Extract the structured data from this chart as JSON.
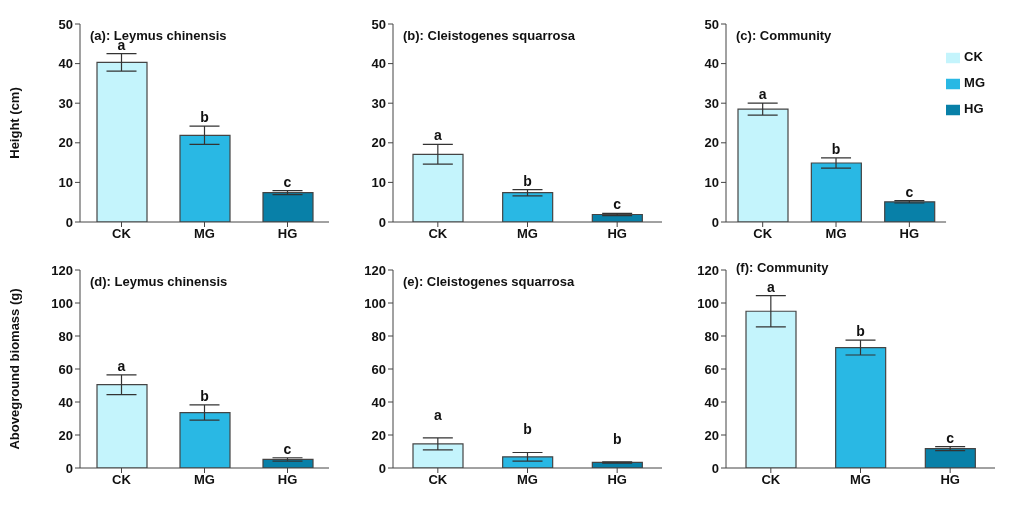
{
  "chart_data": [
    {
      "type": "bar",
      "title": "(a): Leymus chinensis",
      "ylabel": "Height (cm)",
      "categories": [
        "CK",
        "MG",
        "HG"
      ],
      "values": [
        40.3,
        21.9,
        7.4
      ],
      "errors": [
        2.2,
        2.3,
        0.5
      ],
      "colors": [
        "#c4f4fc",
        "#29b8e4",
        "#0880a8"
      ],
      "ylim": [
        0,
        50
      ],
      "yticks": [
        0,
        10,
        20,
        30,
        40,
        50
      ],
      "grid": false,
      "legend": false,
      "annotations": [
        {
          "text": "a",
          "x": "CK",
          "y": 42.5
        },
        {
          "text": "b",
          "x": "MG",
          "y": 24.2
        },
        {
          "text": "c",
          "x": "HG",
          "y": 7.9
        }
      ]
    },
    {
      "type": "bar",
      "title": "(b): Cleistogenes squarrosa",
      "categories": [
        "CK",
        "MG",
        "HG"
      ],
      "values": [
        17.1,
        7.4,
        1.9
      ],
      "errors": [
        2.5,
        0.8,
        0.3
      ],
      "colors": [
        "#c4f4fc",
        "#29b8e4",
        "#0880a8"
      ],
      "ylim": [
        0,
        50
      ],
      "yticks": [
        0,
        10,
        20,
        30,
        40,
        50
      ],
      "grid": false,
      "legend": false,
      "annotations": [
        {
          "text": "a",
          "x": "CK",
          "y": 19.6
        },
        {
          "text": "b",
          "x": "MG",
          "y": 8.2
        },
        {
          "text": "c",
          "x": "HG",
          "y": 2.2
        }
      ]
    },
    {
      "type": "bar",
      "title": "(c): Community",
      "categories": [
        "CK",
        "MG",
        "HG"
      ],
      "stacked": true,
      "series": [
        {
          "name": "CK",
          "color": "#c4f4fc",
          "values": [
            28.5,
            null,
            null
          ],
          "errors": [
            1.5,
            null,
            null
          ]
        },
        {
          "name": "MG",
          "color": "#29b8e4",
          "values": [
            null,
            14.9,
            null
          ],
          "errors": [
            null,
            1.3,
            null
          ]
        },
        {
          "name": "HG",
          "color": "#0880a8",
          "values": [
            null,
            null,
            5.1
          ],
          "errors": [
            null,
            null,
            0.3
          ]
        }
      ],
      "ylim": [
        0,
        50
      ],
      "yticks": [
        0,
        10,
        20,
        30,
        40,
        50
      ],
      "grid": false,
      "legend": "top right",
      "annotations": [
        {
          "text": "a",
          "x": "CK",
          "y": 30
        },
        {
          "text": "b",
          "x": "MG",
          "y": 16.2
        },
        {
          "text": "c",
          "x": "HG",
          "y": 5.4
        }
      ]
    },
    {
      "type": "bar",
      "title": "(d): Leymus chinensis",
      "ylabel": "Aboveground biomass (g)",
      "categories": [
        "CK",
        "MG",
        "HG"
      ],
      "values": [
        50.5,
        33.6,
        5.2
      ],
      "errors": [
        6,
        4.6,
        1
      ],
      "colors": [
        "#c4f4fc",
        "#29b8e4",
        "#0880a8"
      ],
      "ylim": [
        0,
        120
      ],
      "yticks": [
        0,
        20,
        40,
        60,
        80,
        100,
        120
      ],
      "grid": false,
      "legend": false,
      "annotations": [
        {
          "text": "a",
          "x": "CK",
          "y": 56.5
        },
        {
          "text": "b",
          "x": "MG",
          "y": 38.2
        },
        {
          "text": "c",
          "x": "HG",
          "y": 6.2
        }
      ]
    },
    {
      "type": "bar",
      "title": "(e): Cleistogenes squarrosa",
      "categories": [
        "CK",
        "MG",
        "HG"
      ],
      "values": [
        14.6,
        6.8,
        3.4
      ],
      "errors": [
        3.6,
        2.6,
        0.4
      ],
      "colors": [
        "#c4f4fc",
        "#29b8e4",
        "#0880a8"
      ],
      "ylim": [
        0,
        120
      ],
      "yticks": [
        0,
        20,
        40,
        60,
        80,
        100,
        120
      ],
      "grid": false,
      "legend": false,
      "annotations": [
        "a",
        "b",
        "b"
      ]
    },
    {
      "type": "bar",
      "title": "(f): Community",
      "categories": [
        "CK",
        "MG",
        "HG"
      ],
      "values": [
        95,
        73,
        11.7
      ],
      "errors": [
        9.5,
        4.5,
        1.2
      ],
      "colors": [
        "#c4f4fc",
        "#29b8e4",
        "#0880a8"
      ],
      "ylim": [
        0,
        120
      ],
      "yticks": [
        0,
        20,
        40,
        60,
        80,
        100,
        120
      ],
      "grid": false,
      "legend": false,
      "annotations": [
        {
          "text": "a",
          "x": "CK",
          "y": 104.5
        },
        {
          "text": "b",
          "x": "MG",
          "y": 77.5
        },
        {
          "text": "c",
          "x": "HG",
          "y": 12.9
        }
      ]
    }
  ]
}
